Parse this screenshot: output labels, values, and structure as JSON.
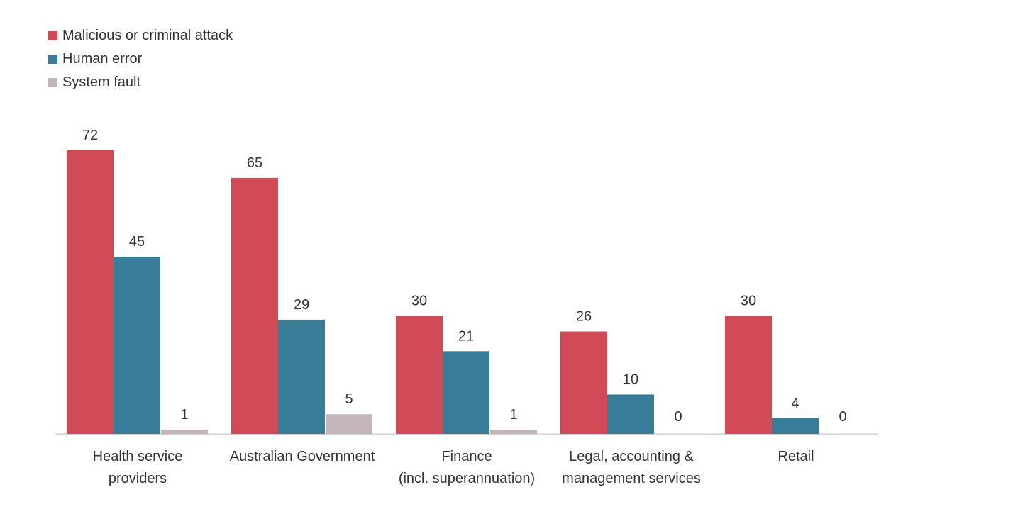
{
  "chart_data": {
    "type": "bar",
    "title": "",
    "xlabel": "",
    "ylabel": "",
    "grid": false,
    "legend_position": "top-left",
    "ylim": [
      0,
      80
    ],
    "categories": [
      [
        "Health service",
        "providers"
      ],
      [
        "Australian Government"
      ],
      [
        "Finance",
        "(incl. superannuation)"
      ],
      [
        "Legal, accounting &",
        "management services"
      ],
      [
        "Retail"
      ]
    ],
    "series": [
      {
        "name": "Malicious or criminal attack",
        "color": "#cf4a54",
        "values": [
          72,
          65,
          30,
          26,
          30
        ]
      },
      {
        "name": "Human error",
        "color": "#387c97",
        "values": [
          45,
          29,
          21,
          10,
          4
        ]
      },
      {
        "name": "System fault",
        "color": "#c4b6b8",
        "values": [
          1,
          5,
          1,
          0,
          0
        ]
      }
    ]
  }
}
